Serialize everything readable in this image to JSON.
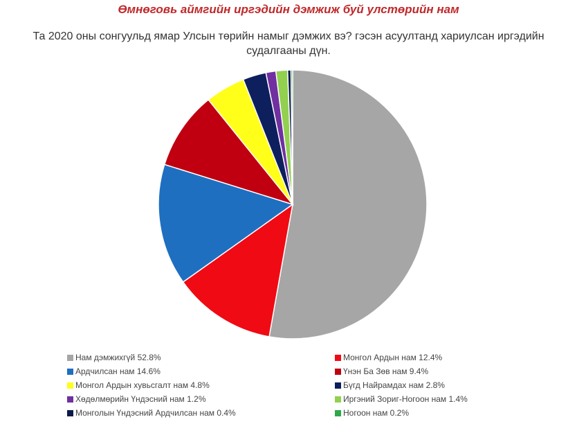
{
  "title": "Өмнөговь аймгийн иргэдийн дэмжиж буй улстөрийн нам",
  "subtitle": "Та 2020 оны сонгуульд ямар Улсын төрийн намыг дэмжих вэ? гэсэн асуултанд хариулсан иргэдийн судалгааны дүн.",
  "chart_data": {
    "type": "pie",
    "title": "Өмнөговь аймгийн иргэдийн дэмжиж буй улстөрийн нам",
    "start": "12 o'clock, clockwise",
    "legend_position": "bottom",
    "slices": [
      {
        "name": "Нам дэмжихгүй",
        "value": 52.8,
        "label": "Нам дэмжихгүй 52.8%",
        "color": "#a6a6a6"
      },
      {
        "name": "Монгол Ардын нам",
        "value": 12.4,
        "label": "Монгол Ардын нам 12.4%",
        "color": "#f00a14"
      },
      {
        "name": "Ардчилсан нам",
        "value": 14.6,
        "label": "Ардчилсан нам 14.6%",
        "color": "#1f6fc0"
      },
      {
        "name": "Үнэн Ба Зөв нам",
        "value": 9.4,
        "label": "Үнэн Ба Зөв нам 9.4%",
        "color": "#c00010"
      },
      {
        "name": "Монгол Ардын хувьсгалт нам",
        "value": 4.8,
        "label": "Монгол Ардын хувьсгалт нам 4.8%",
        "color": "#ffff1a"
      },
      {
        "name": "Бүгд Найрамдах нам",
        "value": 2.8,
        "label": "Бүгд Найрамдах нам 2.8%",
        "color": "#0e1f5e"
      },
      {
        "name": "Хөдөлмөрийн Үндэсний нам",
        "value": 1.2,
        "label": "Хөдөлмөрийн Үндэсний нам 1.2%",
        "color": "#7030a0"
      },
      {
        "name": "Иргэний Зориг-Ногоон нам",
        "value": 1.4,
        "label": "Иргэний Зориг-Ногоон нам 1.4%",
        "color": "#92d050"
      },
      {
        "name": "Монголын Үндэсний Ардчилсан нам",
        "value": 0.4,
        "label": "Монголын Үндэсний Ардчилсан нам 0.4%",
        "color": "#0b1a4a"
      },
      {
        "name": "Ногоон нам",
        "value": 0.2,
        "label": "Ногоон нам 0.2%",
        "color": "#2ea84a"
      }
    ],
    "legend_order": [
      0,
      1,
      2,
      3,
      4,
      5,
      6,
      7,
      8,
      9
    ]
  }
}
